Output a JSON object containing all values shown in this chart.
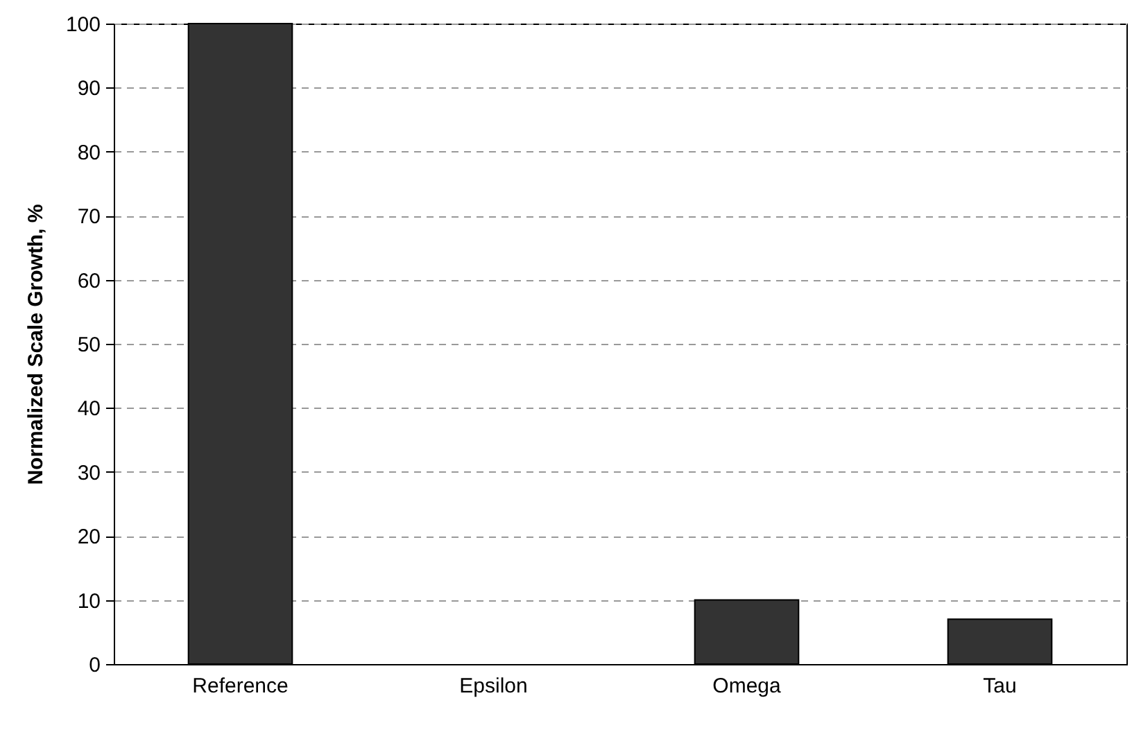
{
  "chart_data": {
    "type": "bar",
    "ylabel": "Normalized Scale Growth, %",
    "categories": [
      "Reference",
      "Epsilon",
      "Omega",
      "Tau"
    ],
    "values": [
      100,
      0,
      10,
      7
    ],
    "color": "#333333",
    "ylim": [
      0,
      100
    ],
    "yticks": [
      0,
      10,
      20,
      30,
      40,
      50,
      60,
      70,
      80,
      90,
      100
    ],
    "grid": "y"
  }
}
